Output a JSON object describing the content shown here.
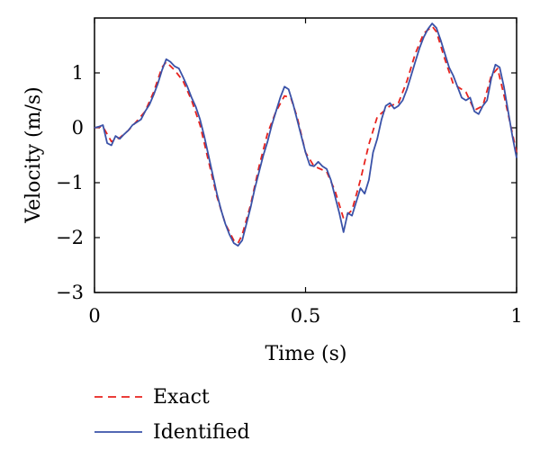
{
  "chart_data": {
    "type": "line",
    "title": "",
    "xlabel": "Time (s)",
    "ylabel": "Velocity (m/s)",
    "xlim": [
      0,
      1
    ],
    "ylim": [
      -3,
      2
    ],
    "xticks": [
      0,
      0.5,
      1
    ],
    "xtick_labels": [
      "0",
      "0.5",
      "1"
    ],
    "yticks": [
      -3,
      -2,
      -1,
      0,
      1
    ],
    "ytick_labels": [
      "−3",
      "−2",
      "−1",
      "0",
      "1"
    ],
    "grid": false,
    "legend_position": "below",
    "series": [
      {
        "name": "Exact",
        "color": "#e8231e",
        "style": "dashed",
        "x": [
          0,
          0.02,
          0.04,
          0.06,
          0.08,
          0.1,
          0.12,
          0.14,
          0.16,
          0.17,
          0.19,
          0.21,
          0.23,
          0.25,
          0.27,
          0.29,
          0.31,
          0.33,
          0.34,
          0.35,
          0.37,
          0.39,
          0.41,
          0.43,
          0.45,
          0.465,
          0.48,
          0.5,
          0.52,
          0.55,
          0.57,
          0.59,
          0.61,
          0.63,
          0.65,
          0.67,
          0.7,
          0.72,
          0.74,
          0.76,
          0.78,
          0.8,
          0.81,
          0.83,
          0.85,
          0.88,
          0.9,
          0.92,
          0.94,
          0.955,
          0.97,
          1.0
        ],
        "y": [
          0,
          0.02,
          -0.25,
          -0.18,
          -0.05,
          0.12,
          0.3,
          0.65,
          1.1,
          1.2,
          1.05,
          0.85,
          0.5,
          0.05,
          -0.6,
          -1.25,
          -1.75,
          -2.05,
          -2.1,
          -1.95,
          -1.4,
          -0.7,
          -0.1,
          0.3,
          0.58,
          0.55,
          0.2,
          -0.45,
          -0.7,
          -0.8,
          -1.15,
          -1.65,
          -1.5,
          -0.95,
          -0.3,
          0.2,
          0.4,
          0.45,
          0.85,
          1.35,
          1.72,
          1.85,
          1.75,
          1.25,
          0.8,
          0.65,
          0.32,
          0.4,
          0.95,
          1.08,
          0.6,
          -0.45
        ]
      },
      {
        "name": "Identified",
        "color": "#3a52a8",
        "style": "solid",
        "x": [
          0,
          0.01,
          0.02,
          0.03,
          0.04,
          0.05,
          0.06,
          0.07,
          0.08,
          0.09,
          0.1,
          0.11,
          0.12,
          0.13,
          0.14,
          0.15,
          0.16,
          0.17,
          0.18,
          0.19,
          0.2,
          0.21,
          0.22,
          0.23,
          0.24,
          0.25,
          0.26,
          0.27,
          0.28,
          0.29,
          0.3,
          0.31,
          0.32,
          0.33,
          0.34,
          0.35,
          0.36,
          0.37,
          0.38,
          0.39,
          0.4,
          0.41,
          0.42,
          0.43,
          0.44,
          0.45,
          0.46,
          0.47,
          0.48,
          0.49,
          0.5,
          0.51,
          0.52,
          0.53,
          0.54,
          0.55,
          0.56,
          0.57,
          0.58,
          0.59,
          0.6,
          0.61,
          0.62,
          0.63,
          0.64,
          0.65,
          0.66,
          0.67,
          0.68,
          0.69,
          0.7,
          0.71,
          0.72,
          0.73,
          0.74,
          0.75,
          0.76,
          0.77,
          0.78,
          0.79,
          0.8,
          0.81,
          0.82,
          0.83,
          0.84,
          0.85,
          0.86,
          0.87,
          0.88,
          0.89,
          0.9,
          0.91,
          0.92,
          0.93,
          0.94,
          0.95,
          0.96,
          0.97,
          0.98,
          0.99,
          1.0
        ],
        "y": [
          0.0,
          0.02,
          0.05,
          -0.28,
          -0.32,
          -0.15,
          -0.2,
          -0.12,
          -0.05,
          0.05,
          0.1,
          0.15,
          0.3,
          0.42,
          0.6,
          0.8,
          1.05,
          1.25,
          1.2,
          1.12,
          1.08,
          0.92,
          0.75,
          0.55,
          0.38,
          0.15,
          -0.15,
          -0.5,
          -0.85,
          -1.2,
          -1.5,
          -1.75,
          -1.95,
          -2.1,
          -2.15,
          -2.05,
          -1.75,
          -1.45,
          -1.1,
          -0.8,
          -0.5,
          -0.25,
          0.05,
          0.3,
          0.55,
          0.75,
          0.7,
          0.45,
          0.15,
          -0.15,
          -0.45,
          -0.68,
          -0.7,
          -0.62,
          -0.7,
          -0.75,
          -0.95,
          -1.25,
          -1.55,
          -1.9,
          -1.55,
          -1.6,
          -1.35,
          -1.1,
          -1.2,
          -0.95,
          -0.45,
          -0.2,
          0.15,
          0.4,
          0.45,
          0.35,
          0.4,
          0.5,
          0.7,
          0.95,
          1.2,
          1.45,
          1.65,
          1.8,
          1.9,
          1.82,
          1.6,
          1.35,
          1.1,
          0.95,
          0.75,
          0.55,
          0.5,
          0.55,
          0.3,
          0.25,
          0.4,
          0.5,
          0.9,
          1.15,
          1.1,
          0.75,
          0.3,
          -0.15,
          -0.55
        ]
      }
    ]
  }
}
